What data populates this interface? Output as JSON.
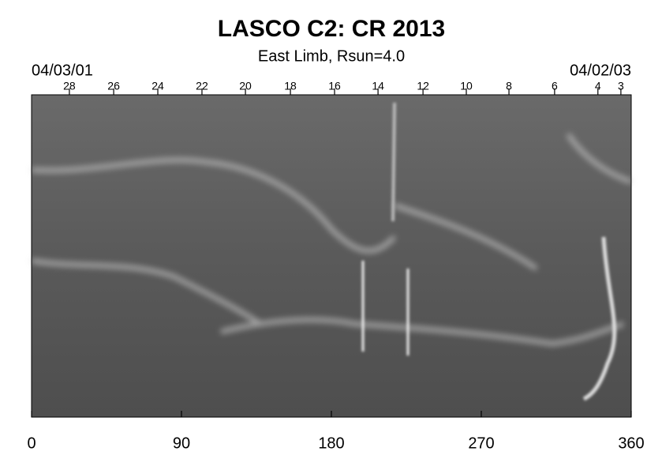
{
  "chart_data": {
    "type": "synoptic-map",
    "title": "LASCO C2: CR 2013",
    "subtitle": "East Limb, Rsun=4.0",
    "xlim": [
      0,
      360
    ],
    "xticks": [
      0,
      90,
      180,
      270,
      360
    ],
    "top_date_labels": [
      {
        "value": 0,
        "label": "04/03/01"
      },
      {
        "value": 360,
        "label": "04/02/03"
      }
    ],
    "top_ticks": [
      {
        "value": 22.7,
        "label": "28"
      },
      {
        "value": 49.3,
        "label": "26"
      },
      {
        "value": 75.8,
        "label": "24"
      },
      {
        "value": 102.3,
        "label": "22"
      },
      {
        "value": 128.4,
        "label": "20"
      },
      {
        "value": 155.4,
        "label": "18"
      },
      {
        "value": 181.9,
        "label": "16"
      },
      {
        "value": 208,
        "label": "14"
      },
      {
        "value": 235,
        "label": "12"
      },
      {
        "value": 261,
        "label": "10"
      },
      {
        "value": 286.6,
        "label": "8"
      },
      {
        "value": 314,
        "label": "6"
      },
      {
        "value": 340,
        "label": "4"
      },
      {
        "value": 353.8,
        "label": "3"
      }
    ]
  }
}
